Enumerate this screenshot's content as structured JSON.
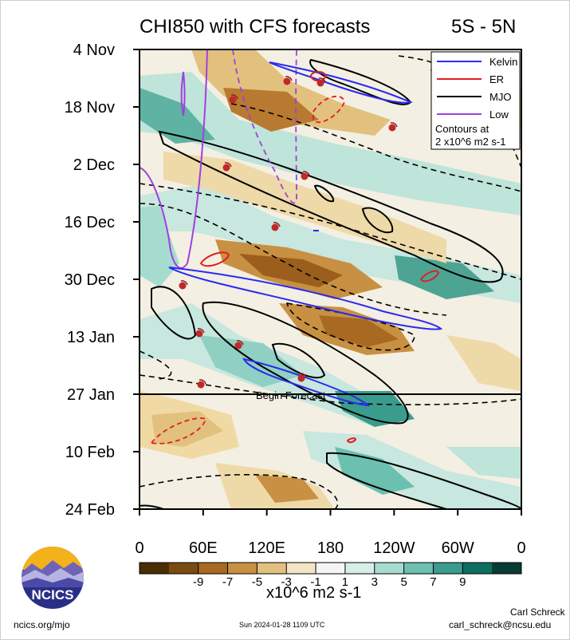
{
  "chart_data": {
    "type": "heatmap",
    "title": "CHI850 with CFS forecasts",
    "region": "5S - 5N",
    "y_ticks": [
      "4 Nov",
      "18 Nov",
      "2 Dec",
      "16 Dec",
      "30 Dec",
      "13 Jan",
      "27 Jan",
      "10 Feb",
      "24 Feb"
    ],
    "x_ticks": [
      "0",
      "60E",
      "120E",
      "180",
      "120W",
      "60W",
      "0"
    ],
    "xlim": [
      0,
      360
    ],
    "forecast_start": "27 Jan",
    "forecast_label": "Begin Forecast",
    "legend": {
      "position": "top-right",
      "entries": [
        {
          "label": "Kelvin",
          "color": "#2a2af0"
        },
        {
          "label": "ER",
          "color": "#e02020"
        },
        {
          "label": "MJO",
          "color": "#000000"
        },
        {
          "label": "Low",
          "color": "#a040e0"
        }
      ],
      "note_line1": "Contours at",
      "note_line2": "2 x10^6 m2 s-1"
    },
    "colorbar": {
      "labels": [
        "-9",
        "-7",
        "-5",
        "-3",
        "-1",
        "1",
        "3",
        "5",
        "7",
        "9"
      ],
      "colors": [
        "#4a2c05",
        "#7a4a10",
        "#a86a22",
        "#c89042",
        "#e2c07e",
        "#f4e6c4",
        "#f5f5f5",
        "#d6efe9",
        "#a6dcd0",
        "#6cc0b0",
        "#3a9c8c",
        "#0e6e60",
        "#083c33"
      ],
      "unit": "x10^6 m2 s-1"
    }
  },
  "footer": {
    "logo_text": "NCICS",
    "url": "ncics.org/mjo",
    "timestamp": "Sun 2024-01-28 1109 UTC",
    "author": "Carl Schreck",
    "email": "carl_schreck@ncsu.edu"
  }
}
